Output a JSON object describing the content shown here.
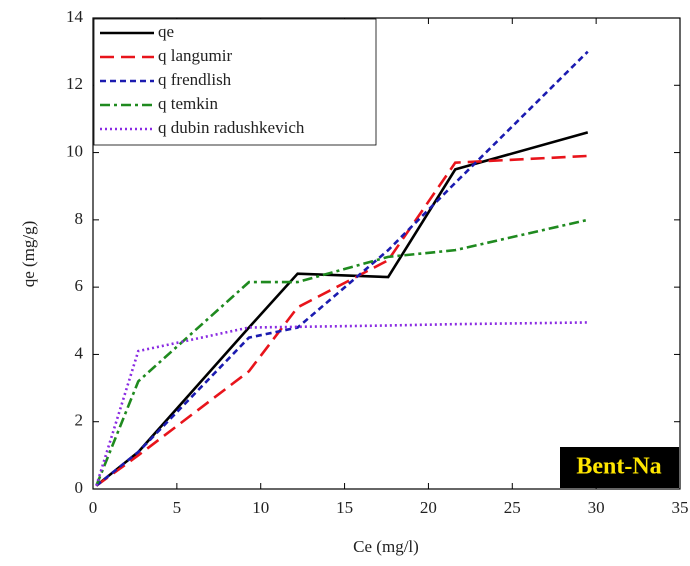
{
  "chart_data": {
    "type": "line",
    "x_label": "Ce (mg/l)",
    "y_label": "qe (mg/g)",
    "annotation": "Bent-Na",
    "legend": "top-left",
    "x": [
      0.2,
      2.7,
      9.3,
      12.2,
      17.6,
      21.6,
      29.5
    ],
    "series": [
      {
        "name": "qe",
        "color": "#000000",
        "style": "solid",
        "values": [
          0.1,
          1.1,
          4.8,
          6.4,
          6.3,
          9.5,
          10.6
        ]
      },
      {
        "name": "q langumir",
        "color": "#e8141b",
        "style": "dash",
        "values": [
          0.1,
          1.0,
          3.5,
          5.4,
          6.8,
          9.7,
          9.9
        ]
      },
      {
        "name": "q frendlish",
        "color": "#1b1bb0",
        "style": "shortdash",
        "values": [
          0.1,
          1.1,
          4.5,
          4.8,
          7.1,
          9.1,
          13.0
        ]
      },
      {
        "name": "q temkin",
        "color": "#1f8a1f",
        "style": "dashdot",
        "values": [
          0.1,
          3.2,
          6.15,
          6.15,
          6.9,
          7.1,
          8.0
        ]
      },
      {
        "name": "q dubin radushkevich",
        "color": "#8a2be2",
        "style": "dot",
        "values": [
          0.1,
          4.1,
          4.8,
          4.82,
          4.86,
          4.9,
          4.95
        ]
      }
    ],
    "xlim": [
      0,
      35
    ],
    "xticks": [
      0,
      5,
      10,
      15,
      20,
      25,
      30,
      35
    ],
    "ylim": [
      0,
      14
    ],
    "yticks": [
      0,
      2,
      4,
      6,
      8,
      10,
      12,
      14
    ]
  }
}
